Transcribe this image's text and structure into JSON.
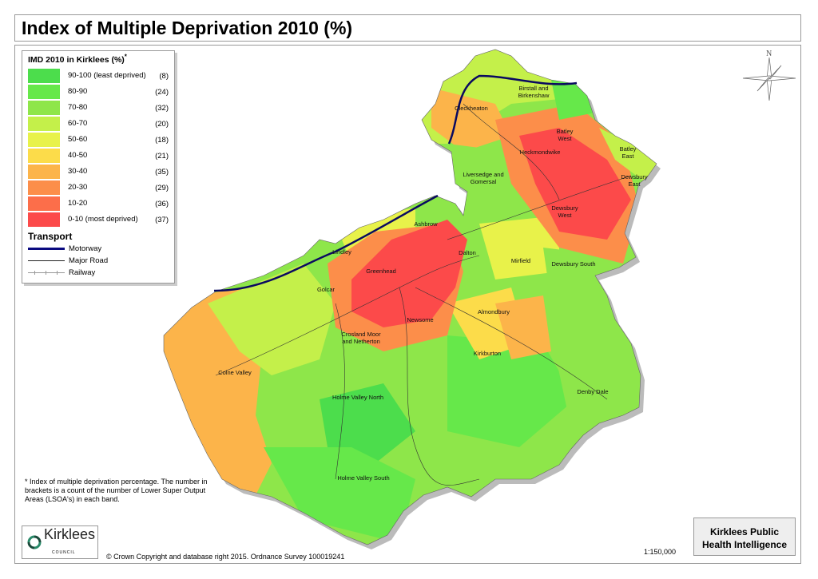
{
  "title": "Index of Multiple Deprivation 2010 (%)",
  "legend": {
    "title": "IMD 2010 in Kirklees (%)",
    "asterisk": "*",
    "bands": [
      {
        "label": "90-100 (least deprived)",
        "count": "(8)",
        "color": "#4cdd4c"
      },
      {
        "label": "80-90",
        "count": "(24)",
        "color": "#66e84a"
      },
      {
        "label": "70-80",
        "count": "(32)",
        "color": "#8ee64a"
      },
      {
        "label": "60-70",
        "count": "(20)",
        "color": "#c4f04a"
      },
      {
        "label": "50-60",
        "count": "(18)",
        "color": "#e8f24a"
      },
      {
        "label": "40-50",
        "count": "(21)",
        "color": "#fcdc4a"
      },
      {
        "label": "30-40",
        "count": "(35)",
        "color": "#fcb44a"
      },
      {
        "label": "20-30",
        "count": "(29)",
        "color": "#fc8e4a"
      },
      {
        "label": "10-20",
        "count": "(36)",
        "color": "#fc6e4a"
      },
      {
        "label": "0-10 (most deprived)",
        "count": "(37)",
        "color": "#fc4a4a"
      }
    ],
    "transport_title": "Transport",
    "transport": [
      {
        "label": "Motorway"
      },
      {
        "label": "Major Road"
      },
      {
        "label": "Railway"
      }
    ]
  },
  "note": "* Index of multiple deprivation percentage. The number in brackets is a count of the number of Lower Super Output Areas (LSOA's) in each band.",
  "logo": {
    "name": "Kirklees",
    "sub": "COUNCIL"
  },
  "copyright": "© Crown Copyright and database right 2015. Ordnance Survey 100019241",
  "scale": "1:150,000",
  "publisher": "Kirklees Public Health Intelligence",
  "north": "N",
  "places": [
    "Birstall and Birkenshaw",
    "Cleckheaton",
    "Batley West",
    "Heckmondwike",
    "Batley East",
    "Dewsbury East",
    "Liversedge and Gomersal",
    "Dewsbury West",
    "Ashbrow",
    "Lindley",
    "Dalton",
    "Mirfield",
    "Dewsbury South",
    "Greenhead",
    "Golcar",
    "Almondbury",
    "Newsome",
    "Crosland Moor and Netherton",
    "Kirkburton",
    "Colne Valley",
    "Holme Valley North",
    "Denby Dale",
    "Holme Valley South"
  ]
}
